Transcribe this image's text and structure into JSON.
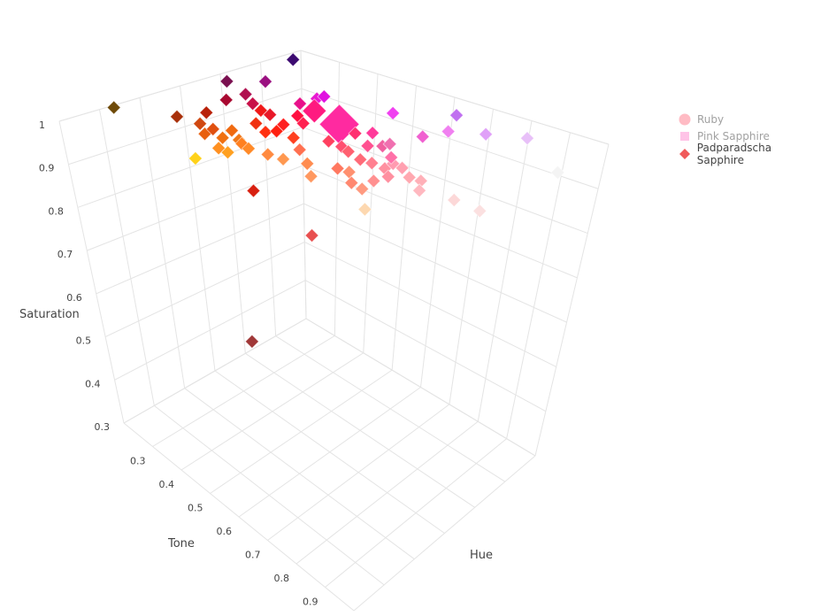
{
  "chart_data": {
    "type": "scatter3d",
    "xlabel": "Hue",
    "ylabel": "Tone",
    "zlabel": "Saturation",
    "xlim": [
      0,
      1
    ],
    "ylim": [
      0.2,
      1.0
    ],
    "zlim": [
      0.3,
      1.0
    ],
    "x_ticks_shown": false,
    "y_ticks": [
      "0.3",
      "0.4",
      "0.5",
      "0.6",
      "0.7",
      "0.8",
      "0.9"
    ],
    "z_ticks": [
      "0.3",
      "0.4",
      "0.5",
      "0.6",
      "0.7",
      "0.8",
      "0.9",
      "1"
    ],
    "grid": true,
    "legend_position": "top-right",
    "legend": [
      {
        "name": "Ruby",
        "symbol": "circle",
        "color": "#ff7a8a",
        "visible": false
      },
      {
        "name": "Pink Sapphire",
        "symbol": "square",
        "color": "#ff88d0",
        "visible": false
      },
      {
        "name": "Padparadscha Sapphire",
        "symbol": "diamond",
        "color": "#f05a5a",
        "visible": true
      }
    ],
    "series": [
      {
        "name": "Padparadscha Sapphire",
        "marker": "diamond",
        "points": [
          [
            0.21,
            0.21,
            1,
            "#6e4a08",
            1
          ],
          [
            0.28,
            0.33,
            1,
            "#a8300a",
            1
          ],
          [
            0.37,
            0.35,
            1,
            "#b82008",
            1
          ],
          [
            0.63,
            0.24,
            1,
            "#7a1050",
            1
          ],
          [
            0.71,
            0.29,
            1,
            "#9a1080",
            1
          ],
          [
            0.92,
            0.23,
            1,
            "#3c0a70",
            1
          ],
          [
            0.5,
            0.32,
            1,
            "#a80830",
            1
          ],
          [
            0.58,
            0.32,
            1,
            "#b01050",
            1
          ],
          [
            0.53,
            0.37,
            1,
            "#c81048",
            1
          ],
          [
            0.03,
            0.535,
            1,
            "#ffd21a",
            1
          ],
          [
            0.16,
            0.6,
            0.93,
            "#d82010",
            1
          ],
          [
            0.28,
            0.68,
            0.84,
            "#e85050",
            1
          ],
          [
            0.18,
            0.56,
            0.6,
            "#a03838",
            1
          ],
          [
            0.7,
            0.43,
            1,
            "#e818d0",
            1
          ],
          [
            0.73,
            0.43,
            1,
            "#e010e0",
            1
          ],
          [
            0.76,
            0.59,
            1,
            "#f040f0",
            1
          ],
          [
            0.88,
            0.68,
            1,
            "#c070f0",
            1
          ],
          [
            0.75,
            0.74,
            1,
            "#f080f0",
            1
          ],
          [
            0.66,
            0.73,
            1,
            "#f060d0",
            1
          ],
          [
            0.81,
            0.8,
            1,
            "#e0a0f8",
            1
          ],
          [
            0.87,
            0.87,
            1,
            "#e8c0f8",
            1
          ],
          [
            0.8,
            1.0,
            0.97,
            "#f4f4f4",
            1
          ],
          [
            0.55,
            0.96,
            0.92,
            "#fbe0e0",
            1
          ],
          [
            0.5,
            0.92,
            0.94,
            "#fcd8d8",
            1
          ],
          [
            0.25,
            0.84,
            0.94,
            "#fdd8b0",
            1
          ],
          [
            0.22,
            0.44,
            1,
            "#e86010",
            1
          ],
          [
            0.27,
            0.43,
            1,
            "#e05010",
            1
          ],
          [
            0.23,
            0.48,
            1,
            "#f07010",
            1
          ],
          [
            0.28,
            0.39,
            1,
            "#d04810",
            1
          ],
          [
            0.3,
            0.46,
            1,
            "#f06a10",
            1
          ],
          [
            0.25,
            0.51,
            1,
            "#f07818",
            1
          ],
          [
            0.14,
            0.55,
            1,
            "#ffa020",
            1
          ],
          [
            0.15,
            0.52,
            1,
            "#ff9020",
            1
          ],
          [
            0.23,
            0.53,
            1,
            "#ff8020",
            1
          ],
          [
            0.21,
            0.56,
            1,
            "#ff8a28",
            1
          ],
          [
            0.4,
            0.46,
            1,
            "#f03010",
            1
          ],
          [
            0.36,
            0.51,
            1,
            "#ff3010",
            1
          ],
          [
            0.39,
            0.52,
            1,
            "#ff2010",
            1
          ],
          [
            0.5,
            0.41,
            1,
            "#f01818",
            1
          ],
          [
            0.49,
            0.44,
            1,
            "#e81828",
            1
          ],
          [
            0.45,
            0.5,
            1,
            "#ff2020",
            1
          ],
          [
            0.38,
            0.57,
            1,
            "#ff4020",
            1
          ],
          [
            0.21,
            0.61,
            1,
            "#ff8a40",
            1
          ],
          [
            0.21,
            0.65,
            1,
            "#ff9850",
            1
          ],
          [
            0.31,
            0.63,
            1,
            "#ff7050",
            1
          ],
          [
            0.23,
            0.7,
            1,
            "#ff8c50",
            1
          ],
          [
            0.15,
            0.76,
            1,
            "#ff9860",
            1
          ],
          [
            0.54,
            0.48,
            1,
            "#ff1040",
            1
          ],
          [
            0.5,
            0.52,
            1,
            "#ff2050",
            1
          ],
          [
            0.63,
            0.43,
            1,
            "#e8108a",
            1
          ],
          [
            0.61,
            0.48,
            1,
            "#ff1a80",
            1.8
          ],
          [
            0.57,
            0.57,
            1,
            "#ff2aa0",
            3
          ],
          [
            0.43,
            0.63,
            1,
            "#ff4060",
            1
          ],
          [
            0.42,
            0.67,
            1,
            "#ff5070",
            1
          ],
          [
            0.4,
            0.7,
            1,
            "#ff6070",
            1
          ],
          [
            0.37,
            0.75,
            1,
            "#ff6a78",
            1
          ],
          [
            0.26,
            0.76,
            1,
            "#ff7860",
            1
          ],
          [
            0.26,
            0.79,
            1,
            "#ff9070",
            1
          ],
          [
            0.48,
            0.7,
            1,
            "#ff5090",
            1
          ],
          [
            0.51,
            0.72,
            1,
            "#f060a0",
            1
          ],
          [
            0.37,
            0.78,
            1,
            "#ff8090",
            1
          ],
          [
            0.36,
            0.82,
            1,
            "#ff90a0",
            1
          ],
          [
            0.41,
            0.81,
            1,
            "#ff9ab0",
            1
          ],
          [
            0.4,
            0.84,
            1,
            "#ffa0b0",
            1
          ],
          [
            0.35,
            0.89,
            1,
            "#ffa8b0",
            1
          ],
          [
            0.31,
            0.86,
            1,
            "#ff90a0",
            1
          ],
          [
            0.25,
            0.86,
            1,
            "#ff9090",
            1
          ],
          [
            0.17,
            0.88,
            1,
            "#ff9a80",
            1
          ],
          [
            0.19,
            0.84,
            1,
            "#ff8870",
            1
          ],
          [
            0.35,
            0.92,
            1,
            "#ffb0b8",
            1
          ],
          [
            0.28,
            0.96,
            1,
            "#ffb8c0",
            1
          ],
          [
            0.45,
            0.78,
            1,
            "#ff70a8",
            1
          ],
          [
            0.58,
            0.65,
            1,
            "#ff3a9a",
            1
          ],
          [
            0.54,
            0.63,
            1,
            "#ff3070",
            1
          ],
          [
            0.54,
            0.72,
            1,
            "#f070b0",
            1
          ]
        ]
      }
    ]
  }
}
